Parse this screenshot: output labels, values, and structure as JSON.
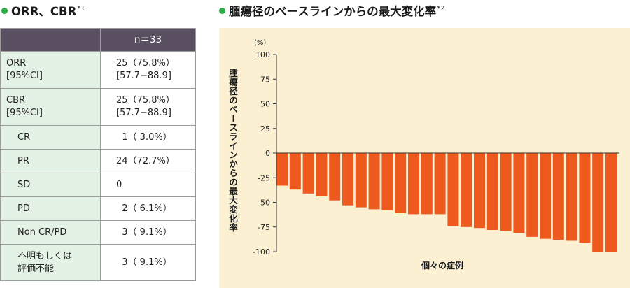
{
  "left_heading": {
    "text": "ORR、CBR",
    "note": "*1"
  },
  "right_heading": {
    "text": "腫瘍径のベースラインからの最大変化率",
    "note": "*2"
  },
  "table": {
    "header": "n＝33",
    "rows": [
      {
        "label": "ORR\n[95%CI]",
        "value": "25（75.8%）\n[57.7−88.9]",
        "indent": false
      },
      {
        "label": "CBR\n[95%CI]",
        "value": "25（75.8%）\n[57.7−88.9]",
        "indent": false
      },
      {
        "label": "CR",
        "value": "  1（ 3.0%）",
        "indent": true
      },
      {
        "label": "PR",
        "value": "24（72.7%）",
        "indent": true
      },
      {
        "label": "SD",
        "value": "0",
        "indent": true
      },
      {
        "label": "PD",
        "value": "  2（ 6.1%）",
        "indent": true
      },
      {
        "label": "Non CR/PD",
        "value": "  3（ 9.1%）",
        "indent": true
      },
      {
        "label": "不明もしくは\n評価不能",
        "value": "  3（ 9.1%）",
        "indent": true
      }
    ]
  },
  "chart_data": {
    "type": "bar",
    "ylabel": "腫瘍径のベースラインからの最大変化率",
    "xlabel": "個々の症例",
    "y_unit": "(%)",
    "ylim": [
      -100,
      100
    ],
    "yticks": [
      "100",
      "75",
      "50",
      "25",
      "0",
      "-25",
      "-50",
      "-75",
      "-100"
    ],
    "bar_color": "#ee5a1d",
    "values": [
      -33,
      -37,
      -41,
      -44,
      -48,
      -53,
      -55,
      -57,
      -58,
      -61,
      -62,
      -62,
      -62,
      -74,
      -75,
      -76,
      -78,
      -79,
      -81,
      -85,
      -87,
      -88,
      -89,
      -91,
      -100,
      -100
    ],
    "grid": false
  }
}
